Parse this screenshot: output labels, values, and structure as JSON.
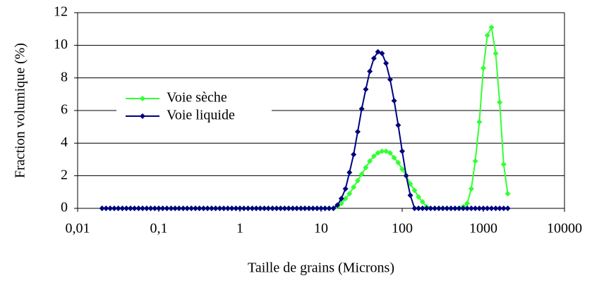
{
  "chart_data": {
    "type": "line",
    "xlabel": "Taille de grains (Microns)",
    "ylabel": "Fraction volumique (%)",
    "xscale": "log",
    "grid": true,
    "legend": "center left",
    "xlim": [
      0.01,
      10000
    ],
    "ylim": [
      0,
      12
    ],
    "xticks": [
      {
        "value": 0.01,
        "label": "0,01"
      },
      {
        "value": 0.1,
        "label": "0,1"
      },
      1,
      10,
      100,
      1000,
      10000
    ],
    "yticks": [
      0,
      2,
      4,
      6,
      8,
      10,
      12
    ],
    "x": [
      0.02,
      0.0224,
      0.0252,
      0.0283,
      0.0317,
      0.0356,
      0.0399,
      0.0448,
      0.0502,
      0.0564,
      0.0632,
      0.071,
      0.0796,
      0.0893,
      0.1,
      0.112,
      0.126,
      0.142,
      0.159,
      0.178,
      0.2,
      0.224,
      0.252,
      0.283,
      0.317,
      0.356,
      0.399,
      0.448,
      0.502,
      0.564,
      0.632,
      0.71,
      0.796,
      0.893,
      1,
      1.12,
      1.26,
      1.42,
      1.59,
      1.78,
      2,
      2.24,
      2.52,
      2.83,
      3.17,
      3.56,
      3.99,
      4.48,
      5.02,
      5.64,
      6.32,
      7.1,
      7.96,
      8.93,
      10,
      11.2,
      12.6,
      14.2,
      15.9,
      17.8,
      20,
      22.4,
      25.2,
      28.3,
      31.7,
      35.6,
      39.9,
      44.8,
      50.2,
      56.4,
      63.2,
      71,
      79.6,
      89.3,
      100,
      112,
      126,
      142,
      159,
      178,
      200,
      224,
      252,
      283,
      317,
      356,
      399,
      448,
      502,
      564,
      632,
      710,
      796,
      893,
      1000,
      1120,
      1260,
      1420,
      1590,
      1780,
      2000
    ],
    "series": [
      {
        "name": "Voie sèche",
        "color": "#33ff33",
        "values": [
          0,
          0,
          0,
          0,
          0,
          0,
          0,
          0,
          0,
          0,
          0,
          0,
          0,
          0,
          0,
          0,
          0,
          0,
          0,
          0,
          0,
          0,
          0,
          0,
          0,
          0,
          0,
          0,
          0,
          0,
          0,
          0,
          0,
          0,
          0,
          0,
          0,
          0,
          0,
          0,
          0,
          0,
          0,
          0,
          0,
          0,
          0,
          0,
          0,
          0,
          0,
          0,
          0,
          0,
          0,
          0,
          0,
          0,
          0.1,
          0.3,
          0.6,
          0.9,
          1.3,
          1.7,
          2.1,
          2.5,
          2.9,
          3.2,
          3.4,
          3.5,
          3.5,
          3.4,
          3.1,
          2.8,
          2.4,
          2.0,
          1.5,
          1.1,
          0.7,
          0.4,
          0.1,
          0,
          0,
          0,
          0,
          0,
          0,
          0,
          0,
          0.1,
          0.3,
          1.2,
          2.9,
          5.3,
          8.6,
          10.6,
          11.1,
          9.5,
          6.5,
          2.7,
          0.9
        ]
      },
      {
        "name": "Voie liquide",
        "color": "#000080",
        "values": [
          0,
          0,
          0,
          0,
          0,
          0,
          0,
          0,
          0,
          0,
          0,
          0,
          0,
          0,
          0,
          0,
          0,
          0,
          0,
          0,
          0,
          0,
          0,
          0,
          0,
          0,
          0,
          0,
          0,
          0,
          0,
          0,
          0,
          0,
          0,
          0,
          0,
          0,
          0,
          0,
          0,
          0,
          0,
          0,
          0,
          0,
          0,
          0,
          0,
          0,
          0,
          0,
          0,
          0,
          0,
          0,
          0,
          0,
          0.2,
          0.6,
          1.2,
          2.2,
          3.3,
          4.7,
          6.1,
          7.3,
          8.4,
          9.2,
          9.6,
          9.5,
          8.9,
          7.9,
          6.6,
          5.1,
          3.5,
          2.0,
          0.8,
          0,
          0,
          0,
          0,
          0,
          0,
          0,
          0,
          0,
          0,
          0,
          0,
          0,
          0,
          0,
          0,
          0,
          0,
          0,
          0,
          0,
          0,
          0,
          0
        ]
      }
    ]
  }
}
